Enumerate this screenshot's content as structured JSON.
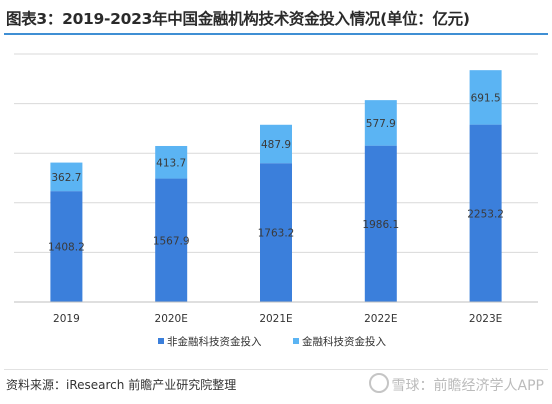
{
  "title": "图表3：2019-2023年中国金融机构技术资金投入情况(单位：亿元)",
  "source": "资料来源：iResearch 前瞻产业研究院整理",
  "footer_watermark": "雪球：前瞻经济学人APP",
  "colors": {
    "non_financial": "#3b7fdb",
    "financial": "#5bb4f3",
    "title_rule": "#3f8fd4"
  },
  "chart_data": {
    "type": "bar",
    "stacked": true,
    "categories": [
      "2019",
      "2020E",
      "2021E",
      "2022E",
      "2023E"
    ],
    "series": [
      {
        "name": "非金融科技资金投入",
        "values": [
          1408.2,
          1567.9,
          1763.2,
          1986.1,
          2253.2
        ],
        "color": "#3b7fdb"
      },
      {
        "name": "金融科技资金投入",
        "values": [
          362.7,
          413.7,
          487.9,
          577.9,
          691.5
        ],
        "color": "#5bb4f3"
      }
    ],
    "ylim": [
      0,
      3150
    ],
    "grid": true,
    "legend_position": "bottom"
  }
}
